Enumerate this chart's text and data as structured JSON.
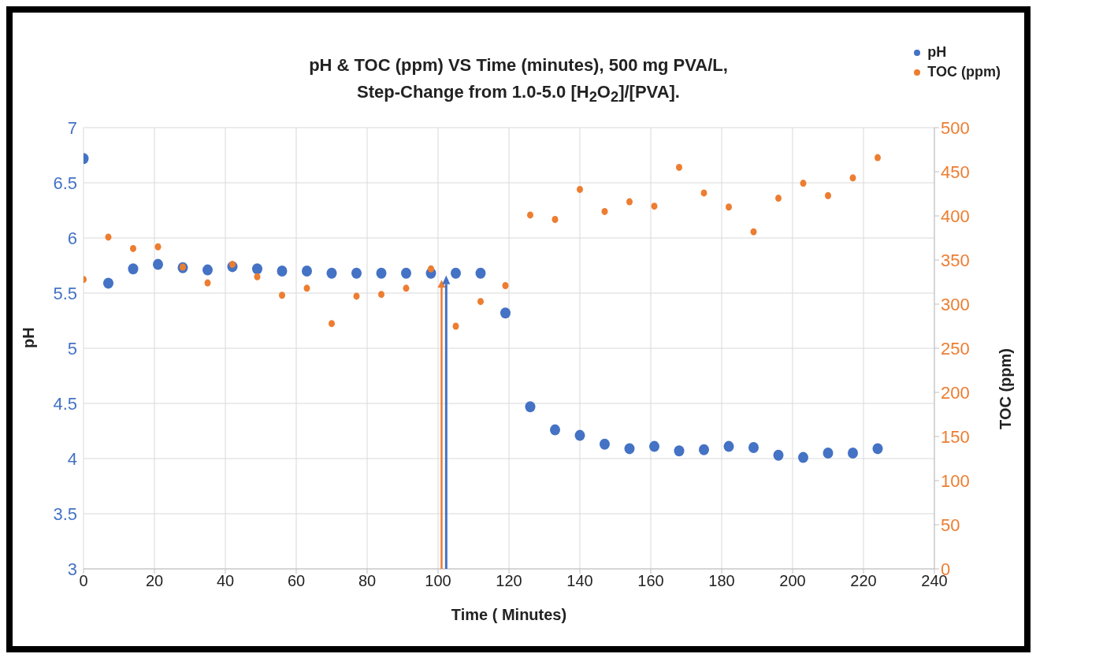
{
  "chart_data": {
    "type": "scatter",
    "title": "pH & TOC (ppm) VS Time (minutes), 500 mg PVA/L,\nStep-Change from 1.0-5.0 [H$_{2}$O$_{2}$]/[PVA].",
    "xlabel": "Time ( Minutes)",
    "ylabel": "pH",
    "y2label": "TOC (ppm)",
    "x": [
      0,
      7,
      14,
      21,
      28,
      35,
      42,
      49,
      56,
      63,
      70,
      77,
      84,
      91,
      98,
      105,
      112,
      119,
      126,
      133,
      140,
      147,
      154,
      161,
      168,
      175,
      182,
      189,
      196,
      203,
      210,
      217,
      224
    ],
    "series": [
      {
        "name": "pH",
        "color": "#4472c4",
        "values": [
          6.72,
          5.59,
          5.72,
          5.76,
          5.73,
          5.71,
          5.74,
          5.72,
          5.7,
          5.7,
          5.68,
          5.68,
          5.68,
          5.68,
          5.68,
          5.68,
          5.68,
          5.32,
          4.47,
          4.26,
          4.21,
          4.13,
          4.09,
          4.11,
          4.07,
          4.08,
          4.11,
          4.1,
          4.03,
          4.01,
          4.05,
          4.05,
          4.09
        ]
      },
      {
        "name": "TOC (ppm)",
        "color": "#ed7d31",
        "axis": "y2",
        "values": [
          328,
          376,
          363,
          365,
          342,
          324,
          345,
          331,
          310,
          318,
          278,
          309,
          311,
          318,
          340,
          275,
          303,
          321,
          401,
          396,
          430,
          405,
          416,
          411,
          455,
          426,
          410,
          382,
          420,
          437,
          423,
          443,
          466
        ]
      }
    ],
    "xlim": [
      0,
      240
    ],
    "xticks": [
      0,
      20,
      40,
      60,
      80,
      100,
      120,
      140,
      160,
      180,
      200,
      220,
      240
    ],
    "ylim": [
      3,
      7
    ],
    "yticks": [
      3,
      3.5,
      4,
      4.5,
      5,
      5.5,
      6,
      6.5,
      7
    ],
    "y2lim": [
      0,
      500
    ],
    "y2ticks": [
      0,
      50,
      100,
      150,
      200,
      250,
      300,
      350,
      400,
      450,
      500
    ],
    "grid": true,
    "legend": "top right",
    "marker": "circle"
  }
}
